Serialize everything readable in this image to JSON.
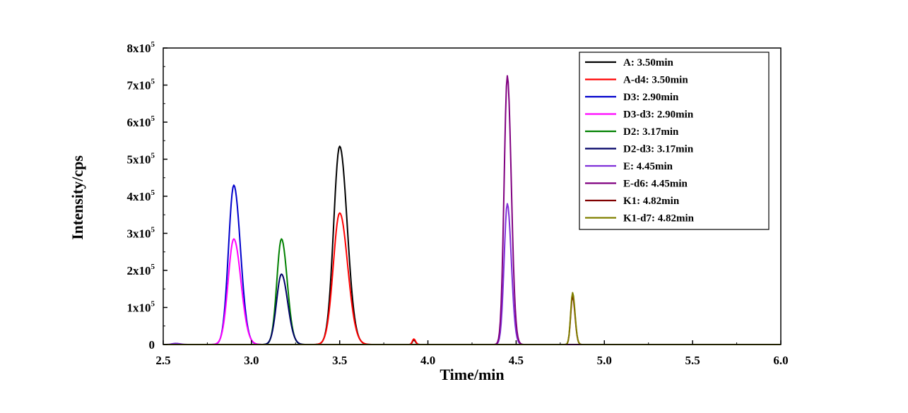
{
  "chart_data": {
    "type": "line",
    "xlabel": "Time/min",
    "ylabel": "Intensity/cps",
    "xlim": [
      2.5,
      6.0
    ],
    "ylim": [
      0,
      800000
    ],
    "x_ticks": [
      {
        "value": 2.5,
        "label": "2.5"
      },
      {
        "value": 3.0,
        "label": "3.0"
      },
      {
        "value": 3.5,
        "label": "3.5"
      },
      {
        "value": 4.0,
        "label": "4.0"
      },
      {
        "value": 4.5,
        "label": "4.5"
      },
      {
        "value": 5.0,
        "label": "5.0"
      },
      {
        "value": 5.5,
        "label": "5.5"
      },
      {
        "value": 6.0,
        "label": "6.0"
      }
    ],
    "y_ticks": [
      {
        "value": 0,
        "mantissa": "0",
        "exp": ""
      },
      {
        "value": 100000,
        "mantissa": "1x10",
        "exp": "5"
      },
      {
        "value": 200000,
        "mantissa": "2x10",
        "exp": "5"
      },
      {
        "value": 300000,
        "mantissa": "3x10",
        "exp": "5"
      },
      {
        "value": 400000,
        "mantissa": "4x10",
        "exp": "5"
      },
      {
        "value": 500000,
        "mantissa": "5x10",
        "exp": "5"
      },
      {
        "value": 600000,
        "mantissa": "6x10",
        "exp": "5"
      },
      {
        "value": 700000,
        "mantissa": "7x10",
        "exp": "5"
      },
      {
        "value": 800000,
        "mantissa": "8x10",
        "exp": "5"
      }
    ],
    "grid": false,
    "legend_position": "top-right",
    "series": [
      {
        "name": "A: 3.50min",
        "color": "#000000",
        "peaks": [
          {
            "x": 3.5,
            "height": 535000,
            "sigma": 0.034
          },
          {
            "x": 3.92,
            "height": 12000,
            "sigma": 0.008
          }
        ]
      },
      {
        "name": "A-d4: 3.50min",
        "color": "#ff0000",
        "peaks": [
          {
            "x": 3.5,
            "height": 355000,
            "sigma": 0.036
          },
          {
            "x": 3.92,
            "height": 15000,
            "sigma": 0.008
          }
        ]
      },
      {
        "name": "D3: 2.90min",
        "color": "#0000cc",
        "peaks": [
          {
            "x": 2.9,
            "height": 430000,
            "sigma": 0.03
          }
        ]
      },
      {
        "name": "D3-d3: 2.90min",
        "color": "#ff00ff",
        "peaks": [
          {
            "x": 2.9,
            "height": 285000,
            "sigma": 0.032
          }
        ]
      },
      {
        "name": "D2: 3.17min",
        "color": "#008000",
        "peaks": [
          {
            "x": 3.17,
            "height": 285000,
            "sigma": 0.026
          }
        ]
      },
      {
        "name": "D2-d3: 3.17min",
        "color": "#000066",
        "peaks": [
          {
            "x": 3.17,
            "height": 190000,
            "sigma": 0.028
          }
        ]
      },
      {
        "name": "E: 4.45min",
        "color": "#7f2fd8",
        "peaks": [
          {
            "x": 4.45,
            "height": 380000,
            "sigma": 0.018
          },
          {
            "x": 2.57,
            "height": 3000,
            "sigma": 0.02
          }
        ]
      },
      {
        "name": "E-d6: 4.45min",
        "color": "#800080",
        "peaks": [
          {
            "x": 4.45,
            "height": 725000,
            "sigma": 0.018
          }
        ]
      },
      {
        "name": "K1: 4.82min",
        "color": "#800000",
        "peaks": [
          {
            "x": 4.82,
            "height": 130000,
            "sigma": 0.011
          }
        ]
      },
      {
        "name": "K1-d7: 4.82min",
        "color": "#808000",
        "peaks": [
          {
            "x": 4.82,
            "height": 140000,
            "sigma": 0.011
          }
        ]
      }
    ]
  }
}
